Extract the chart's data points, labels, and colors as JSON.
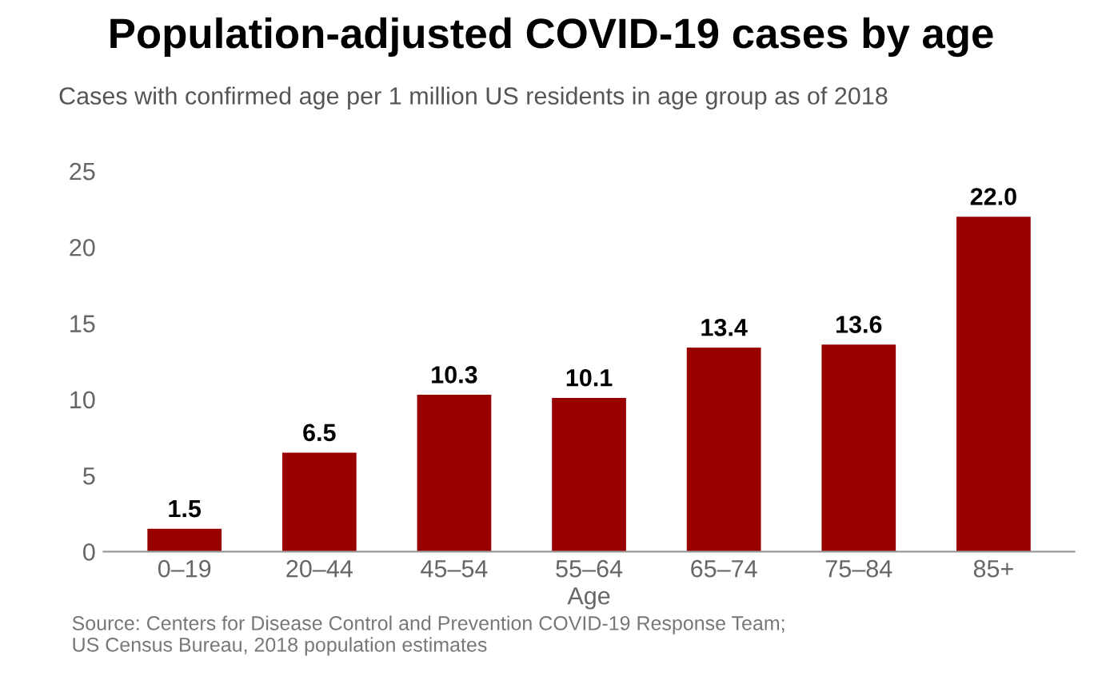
{
  "chart_data": {
    "type": "bar",
    "title": "Population-adjusted COVID-19 cases by age",
    "subtitle": "Cases with confirmed age per 1 million US residents in age group as of 2018",
    "xlabel": "Age",
    "categories": [
      "0–19",
      "20–44",
      "45–54",
      "55–64",
      "65–74",
      "75–84",
      "85+"
    ],
    "values": [
      1.5,
      6.5,
      10.3,
      10.1,
      13.4,
      13.6,
      22.0
    ],
    "value_labels": [
      "1.5",
      "6.5",
      "10.3",
      "10.1",
      "13.4",
      "13.6",
      "22.0"
    ],
    "color": "#990000",
    "ylim": [
      0,
      25
    ],
    "yticks": [
      0,
      5,
      10,
      15,
      20,
      25
    ],
    "grid": false,
    "annotations": [
      "Source: Centers for Disease Control and Prevention COVID-19 Response Team;\nUS Census Bureau, 2018 population estimates"
    ]
  }
}
